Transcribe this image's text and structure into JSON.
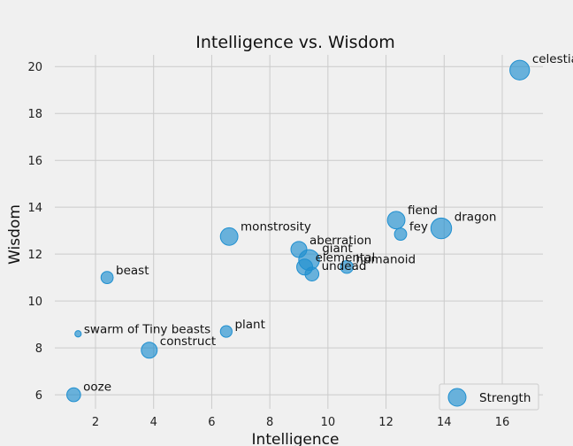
{
  "chart_data": {
    "type": "scatter",
    "title": "Intelligence vs. Wisdom",
    "xlabel": "Intelligence",
    "ylabel": "Wisdom",
    "xlim": [
      0.6,
      17.4
    ],
    "ylim": [
      5.4,
      20.5
    ],
    "xticks": [
      2,
      4,
      6,
      8,
      10,
      12,
      14,
      16
    ],
    "yticks": [
      6,
      8,
      10,
      12,
      14,
      16,
      18,
      20
    ],
    "grid": true,
    "legend": {
      "label": "Strength",
      "placement": "bottom-right"
    },
    "point_color": "#1f8fd0",
    "size_encoding": "Strength",
    "points": [
      {
        "label": "celestial",
        "x": 16.6,
        "y": 19.85,
        "size": 18.5
      },
      {
        "label": "fiend",
        "x": 12.35,
        "y": 13.45,
        "size": 16.5
      },
      {
        "label": "dragon",
        "x": 13.9,
        "y": 13.1,
        "size": 19.5
      },
      {
        "label": "fey",
        "x": 12.5,
        "y": 12.85,
        "size": 11.5
      },
      {
        "label": "monstrosity",
        "x": 6.6,
        "y": 12.75,
        "size": 16.5
      },
      {
        "label": "aberration",
        "x": 9.0,
        "y": 12.2,
        "size": 15.0
      },
      {
        "label": "giant",
        "x": 9.35,
        "y": 11.75,
        "size": 19.5
      },
      {
        "label": "elemental",
        "x": 9.2,
        "y": 11.45,
        "size": 15.0
      },
      {
        "label": "humanoid",
        "x": 10.65,
        "y": 11.45,
        "size": 12.0
      },
      {
        "label": "undead",
        "x": 9.45,
        "y": 11.15,
        "size": 13.0
      },
      {
        "label": "beast",
        "x": 2.4,
        "y": 11.0,
        "size": 11.5
      },
      {
        "label": "swarm of Tiny beasts",
        "x": 1.4,
        "y": 8.6,
        "size": 6.0
      },
      {
        "label": "plant",
        "x": 6.5,
        "y": 8.7,
        "size": 11.0
      },
      {
        "label": "construct",
        "x": 3.85,
        "y": 7.9,
        "size": 15.0
      },
      {
        "label": "ooze",
        "x": 1.25,
        "y": 6.0,
        "size": 13.0
      }
    ]
  }
}
